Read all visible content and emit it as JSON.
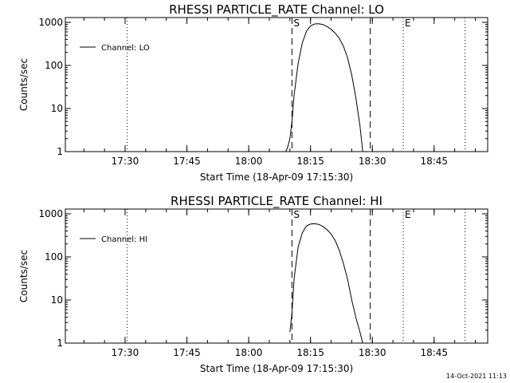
{
  "chart_data": [
    {
      "type": "line",
      "title": "RHESSI PARTICLE_RATE Channel: LO",
      "xlabel": "Start Time (18-Apr-09 17:15:30)",
      "ylabel": "Counts/sec",
      "yscale": "log",
      "ylim": [
        1,
        1000
      ],
      "xlim": [
        "17:15:30",
        "18:58:00"
      ],
      "x_ticks": [
        "17:30",
        "17:45",
        "18:00",
        "18:15",
        "18:30",
        "18:45"
      ],
      "y_ticks": [
        "1",
        "10",
        "100",
        "1000"
      ],
      "legend": {
        "label": "Channel: LO",
        "position": "top-left"
      },
      "markers": [
        {
          "label": "S",
          "time": "18:10:30",
          "style": "dashed"
        },
        {
          "label": "",
          "time": "18:29:30",
          "style": "dashed"
        },
        {
          "label": "E",
          "time": "18:37:30",
          "style": "dotted"
        },
        {
          "label": "",
          "time": "17:30:30",
          "style": "dotted"
        },
        {
          "label": "",
          "time": "18:52:30",
          "style": "dotted"
        }
      ],
      "series": [
        {
          "name": "Channel: LO",
          "x": [
            "18:09:00",
            "18:09:30",
            "18:10:00",
            "18:10:30",
            "18:11:00",
            "18:12:00",
            "18:13:00",
            "18:14:00",
            "18:15:00",
            "18:16:00",
            "18:17:00",
            "18:18:00",
            "18:19:00",
            "18:20:00",
            "18:21:00",
            "18:22:00",
            "18:23:00",
            "18:24:00",
            "18:25:00",
            "18:26:00",
            "18:27:00",
            "18:27:40"
          ],
          "y": [
            1,
            1.3,
            2,
            5,
            20,
            110,
            330,
            620,
            830,
            920,
            930,
            890,
            800,
            690,
            560,
            420,
            280,
            150,
            60,
            18,
            4,
            1
          ]
        }
      ]
    },
    {
      "type": "line",
      "title": "RHESSI PARTICLE_RATE Channel: HI",
      "xlabel": "Start Time (18-Apr-09 17:15:30)",
      "ylabel": "Counts/sec",
      "yscale": "log",
      "ylim": [
        1,
        1000
      ],
      "xlim": [
        "17:15:30",
        "18:58:00"
      ],
      "x_ticks": [
        "17:30",
        "17:45",
        "18:00",
        "18:15",
        "18:30",
        "18:45"
      ],
      "y_ticks": [
        "1",
        "10",
        "100",
        "1000"
      ],
      "legend": {
        "label": "Channel: HI",
        "position": "top-left"
      },
      "markers": [
        {
          "label": "S",
          "time": "18:10:30",
          "style": "dashed"
        },
        {
          "label": "",
          "time": "18:29:30",
          "style": "dashed"
        },
        {
          "label": "E",
          "time": "18:37:30",
          "style": "dotted"
        },
        {
          "label": "",
          "time": "17:30:30",
          "style": "dotted"
        },
        {
          "label": "",
          "time": "18:52:30",
          "style": "dotted"
        }
      ],
      "series": [
        {
          "name": "Channel: HI",
          "x": [
            "18:10:00",
            "18:10:30",
            "18:11:00",
            "18:12:00",
            "18:13:00",
            "18:14:00",
            "18:15:00",
            "18:16:00",
            "18:17:00",
            "18:18:00",
            "18:19:00",
            "18:20:00",
            "18:21:00",
            "18:22:00",
            "18:23:00",
            "18:24:00",
            "18:25:00",
            "18:26:00",
            "18:27:00",
            "18:27:40"
          ],
          "y": [
            1.8,
            5,
            30,
            170,
            360,
            520,
            580,
            590,
            570,
            510,
            430,
            340,
            240,
            140,
            70,
            30,
            10,
            4,
            1.8,
            1
          ]
        }
      ]
    }
  ],
  "footer": {
    "timestamp": "14-Oct-2021 11:13"
  }
}
